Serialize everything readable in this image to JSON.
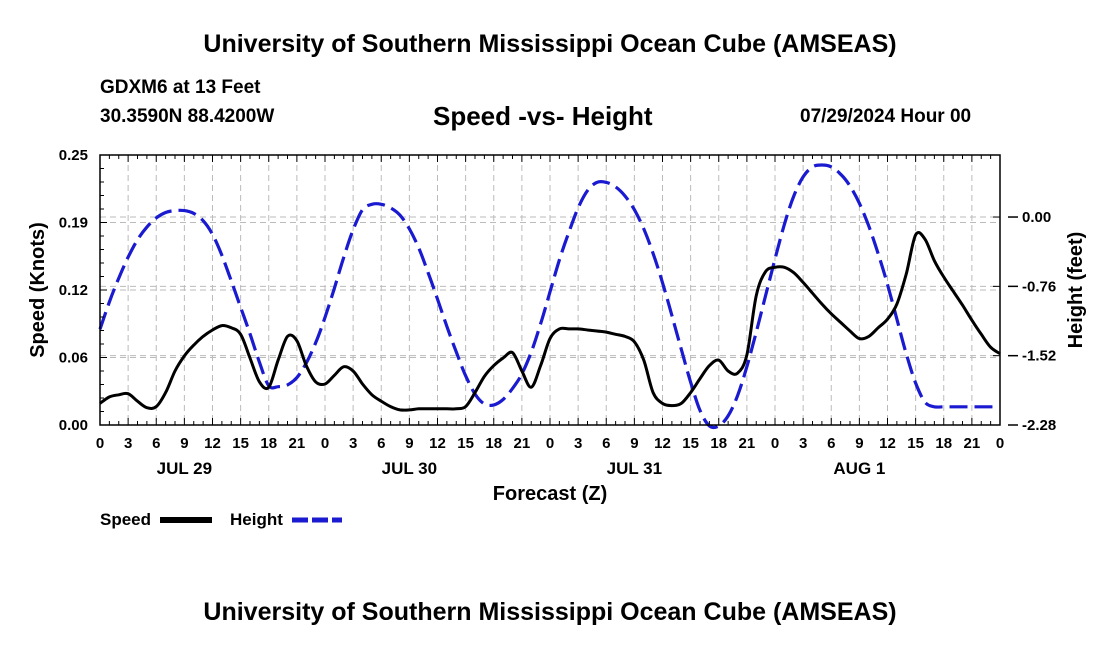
{
  "header": {
    "title": "University of Southern Mississippi Ocean Cube (AMSEAS)",
    "station": "GDXM6 at 13 Feet",
    "coords": "30.3590N  88.4200W",
    "plot_title": "Speed -vs- Height",
    "datetime": "07/29/2024 Hour 00"
  },
  "footer": {
    "title": "University of Southern Mississippi Ocean Cube (AMSEAS)"
  },
  "colors": {
    "speed": "#000000",
    "height": "#1a1ad0",
    "grid": "#bbbbbb"
  },
  "chart_data": {
    "type": "line",
    "title": "Speed -vs- Height",
    "xlabel": "Forecast (Z)",
    "ylabel": "Speed (Knots)",
    "y2label": "Height (feet)",
    "xlim": [
      0,
      96
    ],
    "ylim": [
      0,
      0.25
    ],
    "y2lim": [
      -2.28,
      0.68
    ],
    "x_tick_labels": [
      "0",
      "3",
      "6",
      "9",
      "12",
      "15",
      "18",
      "21",
      "0",
      "3",
      "6",
      "9",
      "12",
      "15",
      "18",
      "21",
      "0",
      "3",
      "6",
      "9",
      "12",
      "15",
      "18",
      "21",
      "0",
      "3",
      "6",
      "9",
      "12",
      "15",
      "18",
      "21",
      "0"
    ],
    "y_ticks": [
      "0.00",
      "0.06",
      "0.12",
      "0.19",
      "0.25"
    ],
    "y_tick_values": [
      0,
      0.0625,
      0.125,
      0.1875,
      0.25
    ],
    "y2_ticks": [
      "0.00",
      "-0.76",
      "-1.52",
      "-2.28"
    ],
    "y2_tick_values": [
      0,
      -0.76,
      -1.52,
      -2.28
    ],
    "day_labels": [
      {
        "hour": 9,
        "label": "JUL 29"
      },
      {
        "hour": 33,
        "label": "JUL 30"
      },
      {
        "hour": 57,
        "label": "JUL 31"
      },
      {
        "hour": 81,
        "label": "AUG 1"
      }
    ],
    "legend": [
      {
        "name": "Speed",
        "style": "solid"
      },
      {
        "name": "Height",
        "style": "dashed"
      }
    ],
    "series": [
      {
        "name": "Speed",
        "axis": "left",
        "x": [
          0,
          1,
          2,
          3,
          4,
          5,
          6,
          7,
          8,
          9,
          10,
          11,
          12,
          13,
          14,
          15,
          16,
          17,
          18,
          19,
          20,
          21,
          22,
          23,
          24,
          25,
          26,
          27,
          28,
          29,
          30,
          31,
          32,
          33,
          34,
          35,
          36,
          37,
          38,
          39,
          40,
          41,
          42,
          43,
          44,
          45,
          46,
          47,
          48,
          49,
          50,
          51,
          52,
          53,
          54,
          55,
          56,
          57,
          58,
          59,
          60,
          61,
          62,
          63,
          64,
          65,
          66,
          67,
          68,
          69,
          70,
          71,
          72,
          73,
          74,
          75,
          76,
          77,
          78,
          79,
          80,
          81,
          82,
          83,
          84,
          85,
          86,
          87,
          88,
          89,
          90,
          91,
          92,
          93,
          94,
          95,
          96
        ],
        "y": [
          0.02,
          0.026,
          0.028,
          0.029,
          0.022,
          0.016,
          0.017,
          0.03,
          0.05,
          0.064,
          0.074,
          0.082,
          0.088,
          0.092,
          0.09,
          0.084,
          0.062,
          0.04,
          0.035,
          0.06,
          0.082,
          0.078,
          0.055,
          0.04,
          0.038,
          0.046,
          0.054,
          0.05,
          0.038,
          0.028,
          0.022,
          0.017,
          0.014,
          0.014,
          0.015,
          0.015,
          0.015,
          0.015,
          0.015,
          0.017,
          0.03,
          0.045,
          0.055,
          0.062,
          0.067,
          0.05,
          0.035,
          0.055,
          0.08,
          0.089,
          0.089,
          0.089,
          0.088,
          0.087,
          0.086,
          0.084,
          0.082,
          0.077,
          0.06,
          0.03,
          0.02,
          0.018,
          0.02,
          0.03,
          0.043,
          0.055,
          0.06,
          0.05,
          0.048,
          0.065,
          0.12,
          0.142,
          0.146,
          0.146,
          0.141,
          0.132,
          0.122,
          0.112,
          0.103,
          0.095,
          0.087,
          0.08,
          0.082,
          0.09,
          0.098,
          0.112,
          0.14,
          0.176,
          0.172,
          0.152,
          0.137,
          0.124,
          0.111,
          0.097,
          0.084,
          0.072,
          0.066
        ]
      },
      {
        "name": "Height",
        "axis": "right",
        "x": [
          0,
          1,
          2,
          3,
          4,
          5,
          6,
          7,
          8,
          9,
          10,
          11,
          12,
          13,
          14,
          15,
          16,
          17,
          18,
          19,
          20,
          21,
          22,
          23,
          24,
          25,
          26,
          27,
          28,
          29,
          30,
          31,
          32,
          33,
          34,
          35,
          36,
          37,
          38,
          39,
          40,
          41,
          42,
          43,
          44,
          45,
          46,
          47,
          48,
          49,
          50,
          51,
          52,
          53,
          54,
          55,
          56,
          57,
          58,
          59,
          60,
          61,
          62,
          63,
          64,
          65,
          66,
          67,
          68,
          69,
          70,
          71,
          72,
          73,
          74,
          75,
          76,
          77,
          78,
          79,
          80,
          81,
          82,
          83,
          84,
          85,
          86,
          87,
          88,
          89,
          90,
          91,
          92,
          93,
          94,
          95,
          96
        ],
        "y": [
          -1.23,
          -0.93,
          -0.67,
          -0.44,
          -0.25,
          -0.11,
          -0.01,
          0.05,
          0.07,
          0.07,
          0.04,
          -0.04,
          -0.19,
          -0.42,
          -0.7,
          -0.99,
          -1.28,
          -1.59,
          -1.85,
          -1.86,
          -1.84,
          -1.76,
          -1.6,
          -1.38,
          -1.1,
          -0.78,
          -0.44,
          -0.14,
          0.08,
          0.14,
          0.14,
          0.1,
          0.02,
          -0.13,
          -0.34,
          -0.61,
          -0.9,
          -1.2,
          -1.48,
          -1.74,
          -1.94,
          -2.05,
          -2.06,
          -2.0,
          -1.88,
          -1.72,
          -1.48,
          -1.17,
          -0.82,
          -0.47,
          -0.17,
          0.1,
          0.29,
          0.38,
          0.38,
          0.33,
          0.23,
          0.08,
          -0.13,
          -0.4,
          -0.72,
          -1.08,
          -1.45,
          -1.81,
          -2.12,
          -2.29,
          -2.29,
          -2.18,
          -1.96,
          -1.64,
          -1.26,
          -0.86,
          -0.46,
          -0.08,
          0.23,
          0.44,
          0.55,
          0.57,
          0.55,
          0.47,
          0.34,
          0.15,
          -0.1,
          -0.4,
          -0.74,
          -1.12,
          -1.5,
          -1.82,
          -2.03,
          -2.08,
          -2.08,
          -2.08,
          -2.08,
          -2.08,
          -2.08,
          -2.08,
          -2.08
        ]
      }
    ]
  }
}
